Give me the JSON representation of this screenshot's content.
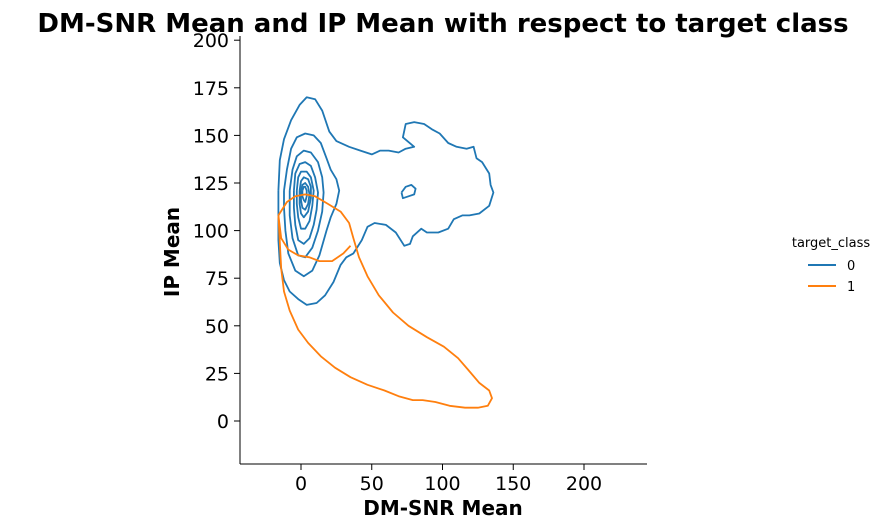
{
  "chart_data": {
    "type": "kde-contour",
    "title": "DM-SNR Mean and IP Mean with respect to target class",
    "xlabel": "DM-SNR Mean",
    "ylabel": "IP Mean",
    "xlim": [
      -44,
      245
    ],
    "ylim": [
      -22,
      203
    ],
    "xticks": [
      0,
      50,
      100,
      150,
      200
    ],
    "yticks": [
      0,
      25,
      50,
      75,
      100,
      125,
      150,
      175,
      200
    ],
    "grid": false,
    "legend": {
      "title": "target_class",
      "placement": "right",
      "entries": [
        {
          "label": "0",
          "color": "#1f77b4"
        },
        {
          "label": "1",
          "color": "#ff7f0e"
        }
      ]
    },
    "series": [
      {
        "label": "0",
        "color": "#1f77b4",
        "contours": [
          [
            [
              -16,
              121
            ],
            [
              -15,
              137
            ],
            [
              -12,
              148
            ],
            [
              -7,
              158
            ],
            [
              -1,
              166
            ],
            [
              4,
              170
            ],
            [
              10,
              169
            ],
            [
              15,
              163
            ],
            [
              20,
              152
            ],
            [
              25,
              147
            ],
            [
              34,
              144
            ],
            [
              42,
              142
            ],
            [
              50,
              140
            ],
            [
              56,
              142
            ],
            [
              62,
              142
            ],
            [
              69,
              141
            ],
            [
              74,
              143
            ],
            [
              80,
              144
            ],
            [
              72,
              149
            ],
            [
              74,
              156
            ],
            [
              80,
              157
            ],
            [
              87,
              156
            ],
            [
              93,
              153
            ],
            [
              98,
              151
            ],
            [
              104,
              146
            ],
            [
              110,
              144
            ],
            [
              117,
              143
            ],
            [
              122,
              144
            ],
            [
              124,
              138
            ],
            [
              128,
              136
            ],
            [
              133,
              130
            ],
            [
              134,
              124
            ],
            [
              136,
              120
            ],
            [
              133,
              113
            ],
            [
              126,
              109
            ],
            [
              119,
              108
            ],
            [
              114,
              108
            ],
            [
              108,
              106
            ],
            [
              104,
              101
            ],
            [
              97,
              99
            ],
            [
              89,
              99
            ],
            [
              85,
              101
            ],
            [
              79,
              97
            ],
            [
              77,
              93
            ],
            [
              73,
              92
            ],
            [
              67,
              99
            ],
            [
              60,
              103
            ],
            [
              52,
              104
            ],
            [
              47,
              102
            ],
            [
              43,
              95
            ],
            [
              37,
              88
            ],
            [
              32,
              86
            ],
            [
              28,
              82
            ],
            [
              23,
              73
            ],
            [
              17,
              66
            ],
            [
              11,
              62
            ],
            [
              4,
              61
            ],
            [
              -2,
              64
            ],
            [
              -8,
              68
            ],
            [
              -12,
              74
            ],
            [
              -15,
              83
            ],
            [
              -16,
              95
            ],
            [
              -16,
              108
            ],
            [
              -16,
              121
            ]
          ],
          [
            [
              -12,
              121
            ],
            [
              -10,
              132
            ],
            [
              -7,
              143
            ],
            [
              -3,
              149
            ],
            [
              3,
              151
            ],
            [
              9,
              150
            ],
            [
              14,
              146
            ],
            [
              18,
              138
            ],
            [
              21,
              132
            ],
            [
              25,
              127
            ],
            [
              27,
              121
            ],
            [
              25,
              114
            ],
            [
              21,
              107
            ],
            [
              18,
              100
            ],
            [
              13,
              87
            ],
            [
              8,
              79
            ],
            [
              2,
              76
            ],
            [
              -4,
              79
            ],
            [
              -9,
              88
            ],
            [
              -11,
              100
            ],
            [
              -12,
              112
            ],
            [
              -12,
              121
            ]
          ],
          [
            [
              -8,
              121
            ],
            [
              -6,
              132
            ],
            [
              -3,
              139
            ],
            [
              2,
              142
            ],
            [
              7,
              141
            ],
            [
              12,
              136
            ],
            [
              15,
              128
            ],
            [
              16,
              120
            ],
            [
              15,
              110
            ],
            [
              12,
              100
            ],
            [
              8,
              91
            ],
            [
              3,
              86
            ],
            [
              -2,
              87
            ],
            [
              -6,
              96
            ],
            [
              -8,
              108
            ],
            [
              -8,
              121
            ]
          ],
          [
            [
              -5,
              121
            ],
            [
              -4,
              130
            ],
            [
              -1,
              135
            ],
            [
              3,
              136
            ],
            [
              7,
              134
            ],
            [
              10,
              128
            ],
            [
              12,
              120
            ],
            [
              11,
              111
            ],
            [
              9,
              103
            ],
            [
              6,
              96
            ],
            [
              2,
              93
            ],
            [
              -2,
              95
            ],
            [
              -4,
              103
            ],
            [
              -5,
              112
            ],
            [
              -5,
              121
            ]
          ],
          [
            [
              -3,
              121
            ],
            [
              -2,
              128
            ],
            [
              0,
              131
            ],
            [
              4,
              131
            ],
            [
              7,
              128
            ],
            [
              9,
              121
            ],
            [
              8,
              113
            ],
            [
              6,
              105
            ],
            [
              3,
              101
            ],
            [
              0,
              101
            ],
            [
              -2,
              107
            ],
            [
              -3,
              114
            ],
            [
              -3,
              121
            ]
          ],
          [
            [
              -1,
              121
            ],
            [
              0,
              126
            ],
            [
              2,
              128
            ],
            [
              5,
              127
            ],
            [
              7,
              123
            ],
            [
              7,
              117
            ],
            [
              5,
              110
            ],
            [
              2,
              107
            ],
            [
              0,
              109
            ],
            [
              -1,
              114
            ],
            [
              -1,
              121
            ]
          ],
          [
            [
              0,
              121
            ],
            [
              1,
              124
            ],
            [
              3,
              125
            ],
            [
              5,
              123
            ],
            [
              6,
              119
            ],
            [
              5,
              114
            ],
            [
              3,
              111
            ],
            [
              1,
              112
            ],
            [
              0,
              116
            ],
            [
              0,
              121
            ]
          ],
          [
            [
              1,
              121
            ],
            [
              2,
              123
            ],
            [
              3,
              123
            ],
            [
              4,
              121
            ],
            [
              4,
              118
            ],
            [
              3,
              115
            ],
            [
              2,
              116
            ],
            [
              1,
              118
            ],
            [
              1,
              121
            ]
          ],
          [
            [
              71,
              120
            ],
            [
              74,
              123
            ],
            [
              78,
              124
            ],
            [
              81,
              122
            ],
            [
              80,
              119
            ],
            [
              76,
              118
            ],
            [
              72,
              117
            ],
            [
              71,
              120
            ]
          ]
        ]
      },
      {
        "label": "1",
        "color": "#ff7f0e",
        "contours": [
          [
            [
              -16,
              108
            ],
            [
              -10,
              115
            ],
            [
              -4,
              118
            ],
            [
              3,
              119
            ],
            [
              10,
              118
            ],
            [
              19,
              114
            ],
            [
              28,
              110
            ],
            [
              34,
              104
            ],
            [
              37,
              96
            ],
            [
              41,
              86
            ],
            [
              47,
              76
            ],
            [
              55,
              66
            ],
            [
              65,
              57
            ],
            [
              76,
              50
            ],
            [
              89,
              44
            ],
            [
              101,
              39
            ],
            [
              111,
              33
            ],
            [
              118,
              27
            ],
            [
              126,
              20
            ],
            [
              133,
              16
            ],
            [
              135,
              12
            ],
            [
              132,
              8
            ],
            [
              125,
              7
            ],
            [
              116,
              7
            ],
            [
              105,
              8
            ],
            [
              95,
              10
            ],
            [
              86,
              11
            ],
            [
              79,
              11
            ],
            [
              69,
              13
            ],
            [
              59,
              16
            ],
            [
              47,
              19
            ],
            [
              35,
              23
            ],
            [
              24,
              28
            ],
            [
              14,
              34
            ],
            [
              5,
              41
            ],
            [
              -2,
              48
            ],
            [
              -8,
              58
            ],
            [
              -12,
              68
            ],
            [
              -14,
              80
            ],
            [
              -15,
              94
            ],
            [
              -16,
              108
            ]
          ],
          [
            [
              -16,
              108
            ],
            [
              -14,
              96
            ],
            [
              -9,
              90
            ],
            [
              -2,
              87
            ],
            [
              6,
              86
            ],
            [
              13,
              84
            ],
            [
              22,
              84
            ],
            [
              30,
              88
            ],
            [
              35,
              92
            ]
          ]
        ]
      }
    ]
  }
}
